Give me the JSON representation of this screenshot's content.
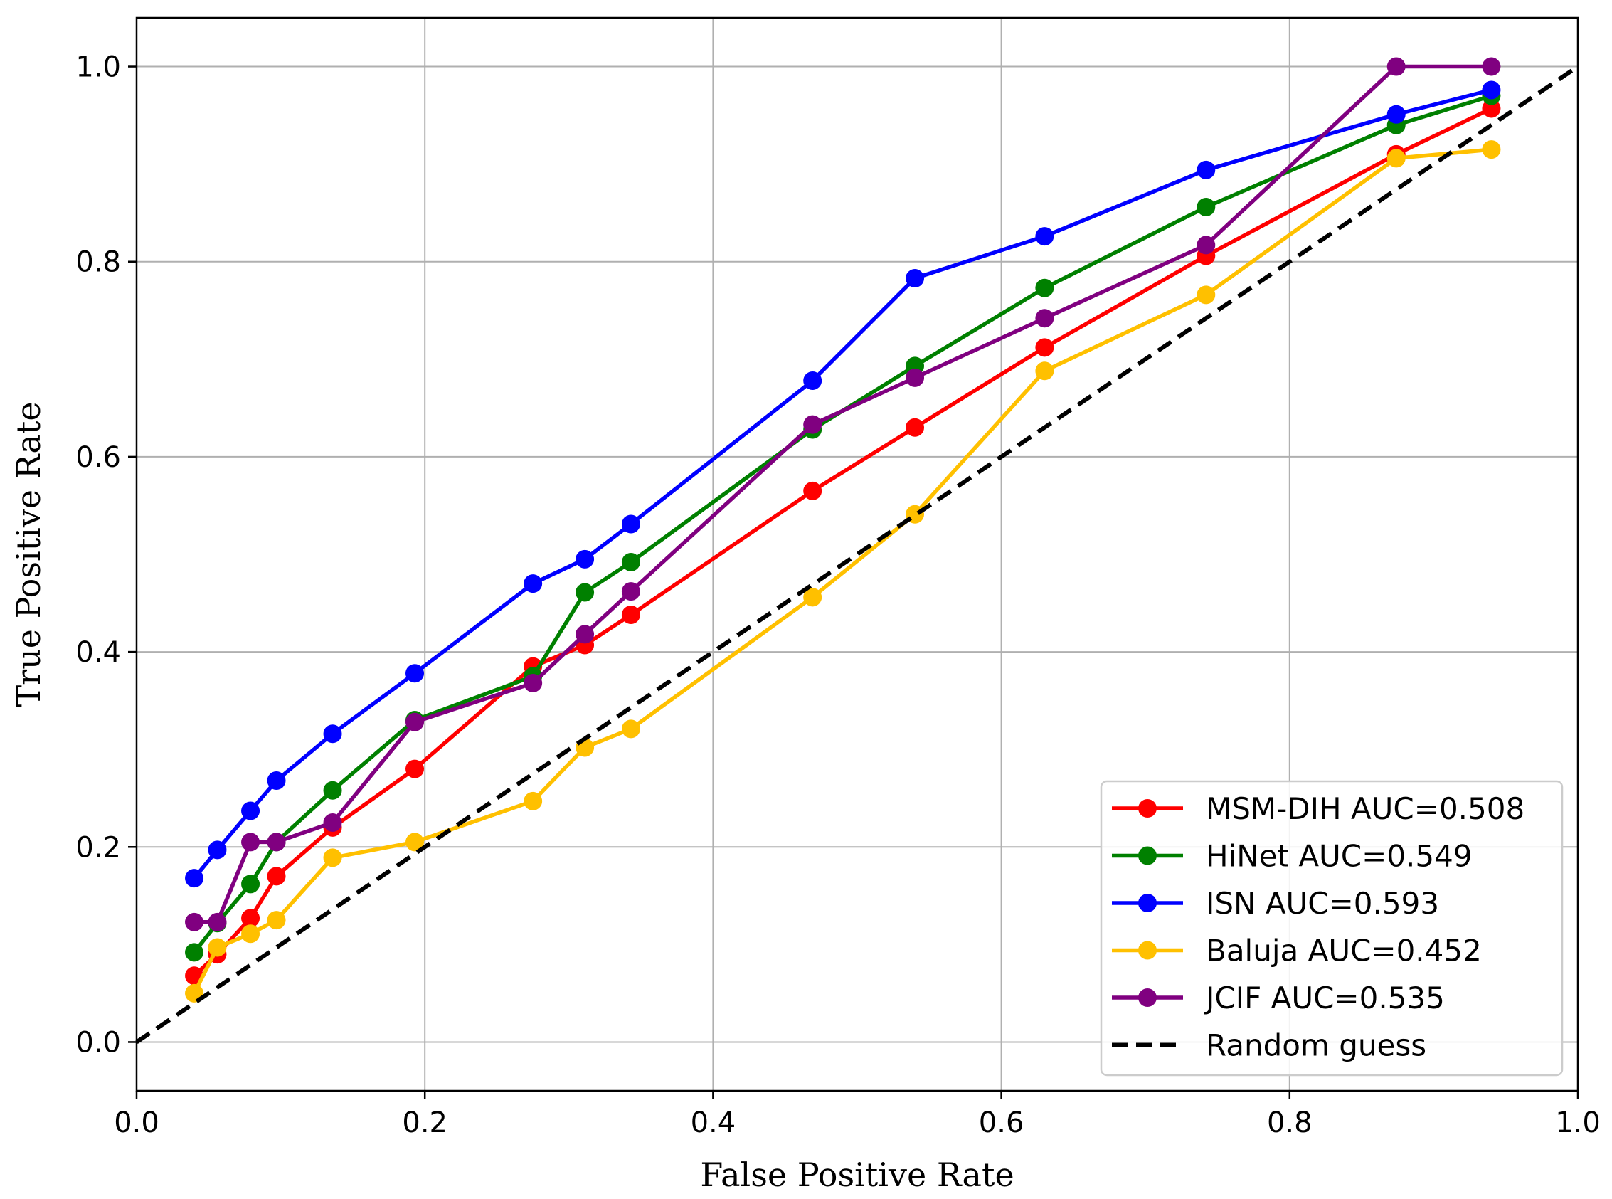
{
  "chart_data": {
    "type": "line",
    "title": "",
    "xlabel": "False Positive Rate",
    "ylabel": "True Positive Rate",
    "xlim": [
      0.0,
      1.0
    ],
    "ylim": [
      -0.05,
      1.05
    ],
    "xticks": [
      "0.0",
      "0.2",
      "0.4",
      "0.6",
      "0.8",
      "1.0"
    ],
    "yticks": [
      "0.0",
      "0.2",
      "0.4",
      "0.6",
      "0.8",
      "1.0"
    ],
    "grid": true,
    "legend_position": "bottom-right",
    "series": [
      {
        "name": "MSM-DIH AUC=0.508",
        "color": "#ff0000",
        "marker": "circle",
        "x": [
          0.04,
          0.056,
          0.079,
          0.097,
          0.136,
          0.193,
          0.275,
          0.311,
          0.343,
          0.469,
          0.54,
          0.63,
          0.742,
          0.874,
          0.94
        ],
        "y": [
          0.068,
          0.09,
          0.127,
          0.17,
          0.22,
          0.28,
          0.385,
          0.407,
          0.438,
          0.565,
          0.63,
          0.712,
          0.806,
          0.91,
          0.957
        ]
      },
      {
        "name": "HiNet AUC=0.549",
        "color": "#008000",
        "marker": "circle",
        "x": [
          0.04,
          0.056,
          0.079,
          0.097,
          0.136,
          0.193,
          0.275,
          0.311,
          0.343,
          0.469,
          0.54,
          0.63,
          0.742,
          0.874,
          0.94
        ],
        "y": [
          0.092,
          0.122,
          0.162,
          0.205,
          0.258,
          0.33,
          0.375,
          0.461,
          0.492,
          0.628,
          0.693,
          0.773,
          0.856,
          0.94,
          0.97
        ]
      },
      {
        "name": "ISN AUC=0.593",
        "color": "#0000ff",
        "marker": "circle",
        "x": [
          0.04,
          0.056,
          0.079,
          0.097,
          0.136,
          0.193,
          0.275,
          0.311,
          0.343,
          0.469,
          0.54,
          0.63,
          0.742,
          0.874,
          0.94
        ],
        "y": [
          0.168,
          0.197,
          0.237,
          0.268,
          0.316,
          0.378,
          0.47,
          0.495,
          0.531,
          0.678,
          0.783,
          0.826,
          0.894,
          0.951,
          0.976
        ]
      },
      {
        "name": "Baluja AUC=0.452",
        "color": "#ffc000",
        "marker": "circle",
        "x": [
          0.04,
          0.056,
          0.079,
          0.097,
          0.136,
          0.193,
          0.275,
          0.311,
          0.343,
          0.469,
          0.54,
          0.63,
          0.742,
          0.874,
          0.94
        ],
        "y": [
          0.05,
          0.097,
          0.111,
          0.125,
          0.189,
          0.205,
          0.247,
          0.302,
          0.321,
          0.456,
          0.541,
          0.688,
          0.766,
          0.906,
          0.915
        ]
      },
      {
        "name": "JCIF AUC=0.535",
        "color": "#800080",
        "marker": "circle",
        "x": [
          0.04,
          0.056,
          0.079,
          0.097,
          0.136,
          0.193,
          0.275,
          0.311,
          0.343,
          0.469,
          0.54,
          0.63,
          0.742,
          0.874,
          0.94
        ],
        "y": [
          0.123,
          0.123,
          0.205,
          0.205,
          0.225,
          0.328,
          0.368,
          0.418,
          0.462,
          0.633,
          0.681,
          0.742,
          0.817,
          1.0,
          1.0
        ]
      },
      {
        "name": "Random guess",
        "color": "#000000",
        "style": "dashed",
        "marker": "none",
        "x": [
          0.0,
          1.0
        ],
        "y": [
          0.0,
          1.0
        ]
      }
    ]
  }
}
